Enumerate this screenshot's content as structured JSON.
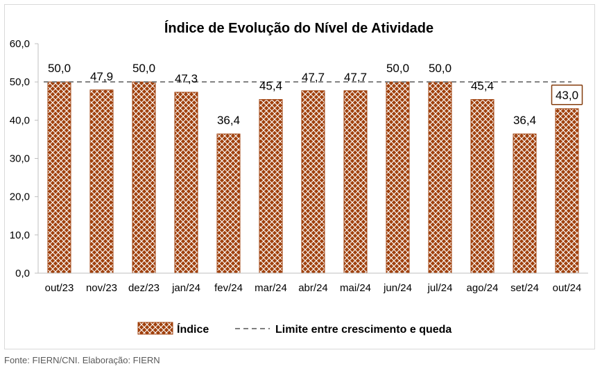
{
  "chart_data": {
    "type": "bar",
    "title": "Índice de Evolução do Nível de Atividade",
    "categories": [
      "out/23",
      "nov/23",
      "dez/23",
      "jan/24",
      "fev/24",
      "mar/24",
      "abr/24",
      "mai/24",
      "jun/24",
      "jul/24",
      "ago/24",
      "set/24",
      "out/24"
    ],
    "series": [
      {
        "name": "Índice",
        "values": [
          50.0,
          47.9,
          50.0,
          47.3,
          36.4,
          45.4,
          47.7,
          47.7,
          50.0,
          50.0,
          45.4,
          36.4,
          43.0
        ],
        "labels": [
          "50,0",
          "47,9",
          "50,0",
          "47,3",
          "36,4",
          "45,4",
          "47,7",
          "47,7",
          "50,0",
          "50,0",
          "45,4",
          "36,4",
          "43,0"
        ]
      }
    ],
    "reference_line": {
      "name": "Limite entre crescimento e queda",
      "value": 50
    },
    "ylim": [
      0,
      60
    ],
    "yticks": [
      0,
      10,
      20,
      30,
      40,
      50,
      60
    ],
    "ytick_labels": [
      "0,0",
      "10,0",
      "20,0",
      "30,0",
      "40,0",
      "50,0",
      "60,0"
    ],
    "xlabel": "",
    "ylabel": "",
    "grid": false,
    "legend_position": "bottom",
    "highlighted_category": "out/24",
    "colors": {
      "bar": "#a0410d",
      "bar_pattern": "#ffffff",
      "reference": "#7f7f7f",
      "highlight_box": "#843c0c"
    }
  },
  "source": "Fonte: FIERN/CNI. Elaboração: FIERN"
}
